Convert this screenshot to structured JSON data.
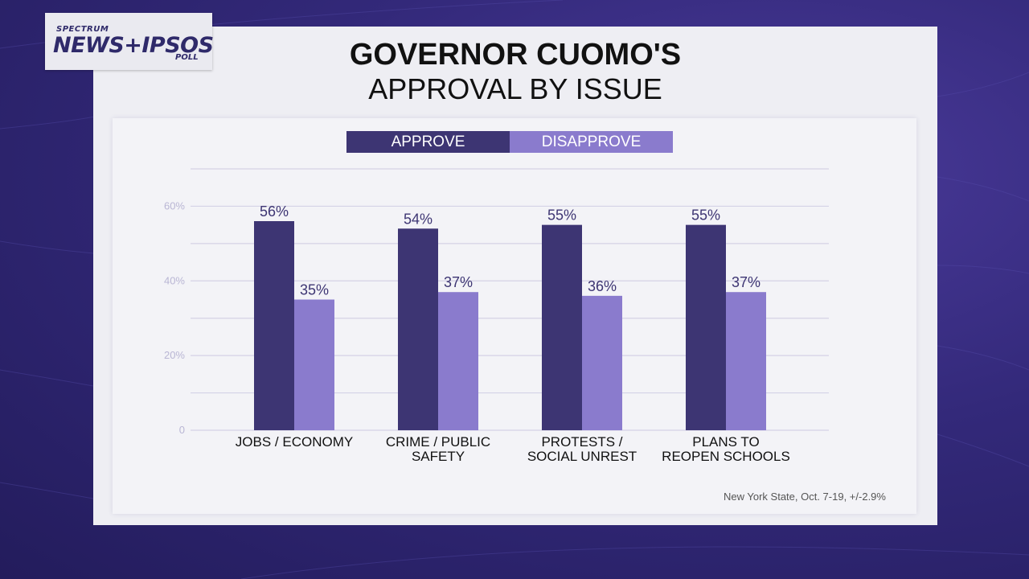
{
  "logo": {
    "line1": "SPECTRUM",
    "line2": "NEWS+IPSOS",
    "line3": "POLL"
  },
  "title": "GOVERNOR CUOMO'S",
  "subtitle": "APPROVAL BY ISSUE",
  "footnote": "New York State, Oct. 7-19, +/-2.9%",
  "colors": {
    "approve": "#3d3573",
    "disapprove": "#8a7bcd",
    "grid": "#d4d2e6",
    "axis_text": "#b9b6d4"
  },
  "chart_data": {
    "type": "bar",
    "categories": [
      [
        "JOBS / ECONOMY"
      ],
      [
        "CRIME / PUBLIC",
        "SAFETY"
      ],
      [
        "PROTESTS /",
        "SOCIAL UNREST"
      ],
      [
        "PLANS TO",
        "REOPEN SCHOOLS"
      ]
    ],
    "series": [
      {
        "name": "APPROVE",
        "values": [
          56,
          54,
          55,
          55
        ],
        "labels": [
          "56%",
          "54%",
          "55%",
          "55%"
        ]
      },
      {
        "name": "DISAPPROVE",
        "values": [
          35,
          37,
          36,
          37
        ],
        "labels": [
          "35%",
          "37%",
          "36%",
          "37%"
        ]
      }
    ],
    "yticks": [
      0,
      20,
      40,
      60
    ],
    "ytick_labels": [
      "0",
      "20%",
      "40%",
      "60%"
    ],
    "ylim": [
      0,
      70
    ],
    "legend": "top-center",
    "grid": true
  }
}
